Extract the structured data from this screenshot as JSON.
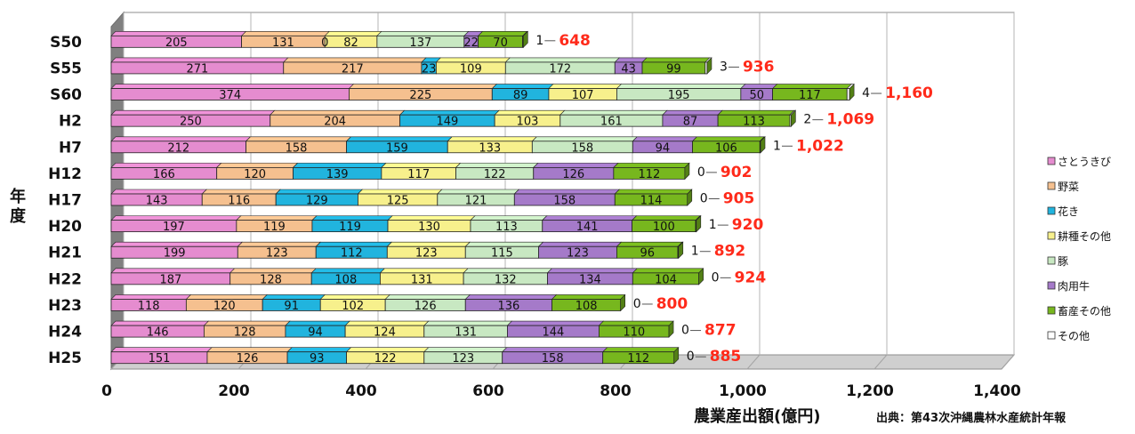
{
  "chart_data": {
    "type": "bar",
    "orientation": "horizontal",
    "stacked": true,
    "categories": [
      "S50",
      "S55",
      "S60",
      "H2",
      "H7",
      "H12",
      "H17",
      "H20",
      "H21",
      "H22",
      "H23",
      "H24",
      "H25"
    ],
    "series": [
      {
        "name": "さとうきび",
        "color": "#e58ccf",
        "values": [
          205,
          271,
          374,
          250,
          212,
          166,
          143,
          197,
          199,
          187,
          118,
          146,
          151
        ]
      },
      {
        "name": "野菜",
        "color": "#f5c08f",
        "values": [
          131,
          217,
          225,
          204,
          158,
          120,
          116,
          119,
          123,
          128,
          120,
          128,
          126
        ]
      },
      {
        "name": "花き",
        "color": "#21b4de",
        "values": [
          0,
          23,
          89,
          149,
          159,
          139,
          129,
          119,
          112,
          108,
          91,
          94,
          93
        ]
      },
      {
        "name": "耕種その他",
        "color": "#f7f08c",
        "values": [
          82,
          109,
          107,
          103,
          133,
          117,
          125,
          130,
          123,
          131,
          102,
          124,
          122
        ]
      },
      {
        "name": "豚",
        "color": "#c8e8c2",
        "values": [
          137,
          172,
          195,
          161,
          158,
          122,
          121,
          113,
          115,
          132,
          126,
          131,
          123
        ]
      },
      {
        "name": "肉用牛",
        "color": "#a57ac9",
        "values": [
          22,
          43,
          50,
          87,
          94,
          126,
          158,
          141,
          123,
          134,
          136,
          144,
          158
        ]
      },
      {
        "name": "畜産その他",
        "color": "#77b71e",
        "values": [
          70,
          99,
          117,
          113,
          106,
          112,
          114,
          100,
          96,
          104,
          108,
          110,
          112
        ]
      },
      {
        "name": "その他",
        "color": "#ffffff",
        "values": [
          1,
          3,
          4,
          2,
          1,
          0,
          0,
          1,
          1,
          0,
          0,
          0,
          0
        ]
      }
    ],
    "totals": [
      "648",
      "936",
      "1,160",
      "1,069",
      "1,022",
      "902",
      "905",
      "920",
      "892",
      "924",
      "800",
      "877",
      "885"
    ],
    "value_labels": [
      [
        "205",
        "131",
        "0",
        "82",
        "137",
        "22",
        "70",
        "1"
      ],
      [
        "271",
        "217",
        "23",
        "109",
        "172",
        "43",
        "99",
        "3"
      ],
      [
        "374",
        "225",
        "89",
        "107",
        "195",
        "50",
        "117",
        "4"
      ],
      [
        "250",
        "204",
        "149",
        "103",
        "161",
        "87",
        "113",
        "2"
      ],
      [
        "212",
        "158",
        "159",
        "133",
        "158",
        "94",
        "106",
        "1"
      ],
      [
        "166",
        "120",
        "139",
        "117",
        "122",
        "126",
        "112",
        "0"
      ],
      [
        "143",
        "116",
        "129",
        "125",
        "121",
        "158",
        "114",
        "0"
      ],
      [
        "197",
        "119",
        "119",
        "130",
        "113",
        "141",
        "100",
        "1"
      ],
      [
        "199",
        "123",
        "112",
        "123",
        "115",
        "123",
        "96",
        "1"
      ],
      [
        "187",
        "128",
        "108",
        "131",
        "132",
        "134",
        "104",
        "0"
      ],
      [
        "118",
        "120",
        "91",
        "102",
        "126",
        "136",
        "108",
        "0"
      ],
      [
        "146",
        "128",
        "94",
        "124",
        "131",
        "144",
        "110",
        "0"
      ],
      [
        "151",
        "126",
        "93",
        "122",
        "123",
        "158",
        "112",
        "0"
      ]
    ],
    "xlim": [
      0,
      1400
    ],
    "xticks": [
      "0",
      "200",
      "400",
      "600",
      "800",
      "1,000",
      "1,200",
      "1,400"
    ],
    "xlabel": "農業産出額(億円)",
    "ylabel": "年度",
    "source": "出典：第43次沖縄農林水産統計年報",
    "grid": true,
    "legend_position": "right",
    "total_color": "#ff2a1a"
  }
}
